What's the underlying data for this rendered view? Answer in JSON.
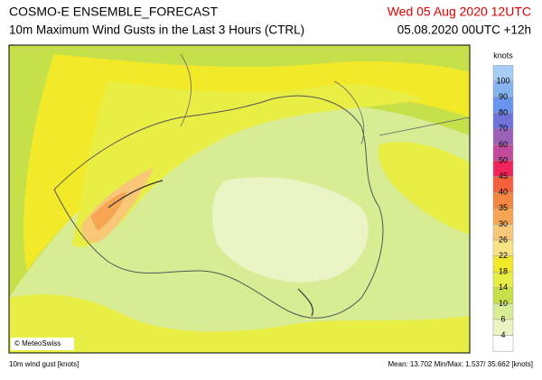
{
  "header": {
    "title": "COSMO-E ENSEMBLE_FORECAST",
    "subtitle": "10m Maximum Wind Gusts in the Last 3 Hours (CTRL)",
    "valid_time": "Wed 05 Aug 2020 12UTC",
    "run_time": "05.08.2020 00UTC +12h"
  },
  "map": {
    "credit": "© MeteoSwiss"
  },
  "legend": {
    "title": "knots",
    "levels": [
      100,
      90,
      80,
      70,
      60,
      50,
      45,
      40,
      35,
      30,
      26,
      22,
      18,
      14,
      10,
      6,
      4
    ],
    "colors": [
      "#a8cdf4",
      "#86b4f0",
      "#6a95ee",
      "#6f72d8",
      "#9a62b6",
      "#c24a9a",
      "#f0245a",
      "#f2603c",
      "#f38640",
      "#f6a652",
      "#f8c878",
      "#f8e486",
      "#f2ea28",
      "#e8ee44",
      "#c6e04a",
      "#d8ec94",
      "#eaf4c4",
      "#ffffff"
    ]
  },
  "footer": {
    "left": "10m wind gust [knots]",
    "right": "Mean: 13.702 Min/Max: 1.537/ 35.662 [knots]"
  }
}
